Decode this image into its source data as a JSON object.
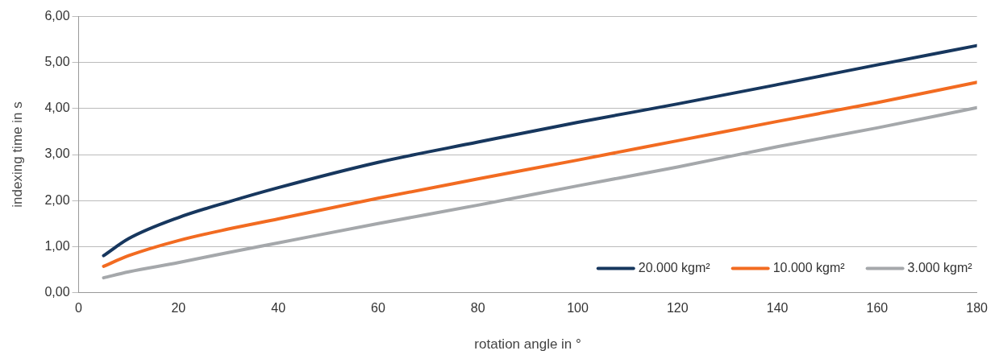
{
  "chart_data": {
    "type": "line",
    "xlabel": "rotation angle in °",
    "ylabel": "indexing time in s",
    "xlim": [
      0,
      180
    ],
    "xticks": [
      0,
      20,
      40,
      60,
      80,
      100,
      120,
      140,
      160,
      180
    ],
    "ylim": [
      0,
      6
    ],
    "yticks": [
      {
        "value": 0,
        "label": "0,00"
      },
      {
        "value": 1,
        "label": "1,00"
      },
      {
        "value": 2,
        "label": "2,00"
      },
      {
        "value": 3,
        "label": "3,00"
      },
      {
        "value": 4,
        "label": "4,00"
      },
      {
        "value": 5,
        "label": "5,00"
      },
      {
        "value": 6,
        "label": "6,00"
      }
    ],
    "grid": "y",
    "legend": "bottom right",
    "marker": "none",
    "line_style": "solid",
    "x": [
      5,
      10,
      20,
      30,
      40,
      60,
      80,
      100,
      120,
      140,
      160,
      180
    ],
    "series": [
      {
        "name": "20.000 kgm²",
        "color": "#17375e",
        "values": [
          0.8,
          1.17,
          1.63,
          1.97,
          2.28,
          2.83,
          3.27,
          3.7,
          4.1,
          4.52,
          4.95,
          5.37
        ]
      },
      {
        "name": "10.000 kgm²",
        "color": "#f26b21",
        "values": [
          0.57,
          0.8,
          1.13,
          1.38,
          1.6,
          2.05,
          2.47,
          2.88,
          3.3,
          3.72,
          4.13,
          4.57
        ]
      },
      {
        "name": "3.000 kgm²",
        "color": "#a5a8ab",
        "values": [
          0.32,
          0.45,
          0.65,
          0.87,
          1.08,
          1.5,
          1.9,
          2.32,
          2.73,
          3.17,
          3.58,
          4.02
        ]
      }
    ]
  }
}
